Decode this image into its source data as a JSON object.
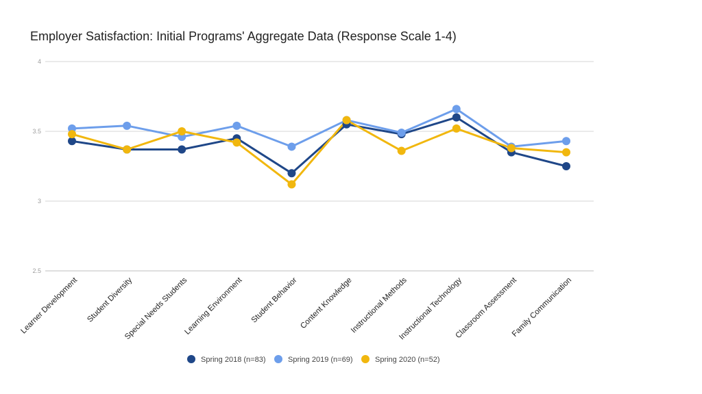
{
  "chart_data": {
    "type": "line",
    "title": "Employer Satisfaction: Initial Programs' Aggregate Data (Response Scale 1-4)",
    "xlabel": "",
    "ylabel": "",
    "ylim": [
      2.5,
      4
    ],
    "yticks": [
      "2.5",
      "3",
      "3.5",
      "4"
    ],
    "grid": true,
    "legend_position": "bottom",
    "categories": [
      "Learner Development",
      "Student Diversity",
      "Special Needs Students",
      "Learning Environment",
      "Student Behavior",
      "Content Knowledge",
      "Instructional Methods",
      "Instructional Technology",
      "Classroom Assessment",
      "Family Communication"
    ],
    "series": [
      {
        "name": "Spring 2018 (n=83)",
        "color": "#1f4788",
        "values": [
          3.43,
          3.37,
          3.37,
          3.45,
          3.2,
          3.55,
          3.48,
          3.6,
          3.35,
          3.25
        ]
      },
      {
        "name": "Spring 2019 (n=69)",
        "color": "#6d9eeb",
        "values": [
          3.52,
          3.54,
          3.46,
          3.54,
          3.39,
          3.58,
          3.49,
          3.66,
          3.39,
          3.43
        ]
      },
      {
        "name": "Spring 2020 (n=52)",
        "color": "#f1b70e",
        "values": [
          3.48,
          3.37,
          3.5,
          3.42,
          3.12,
          3.58,
          3.36,
          3.52,
          3.38,
          3.35
        ]
      }
    ]
  }
}
